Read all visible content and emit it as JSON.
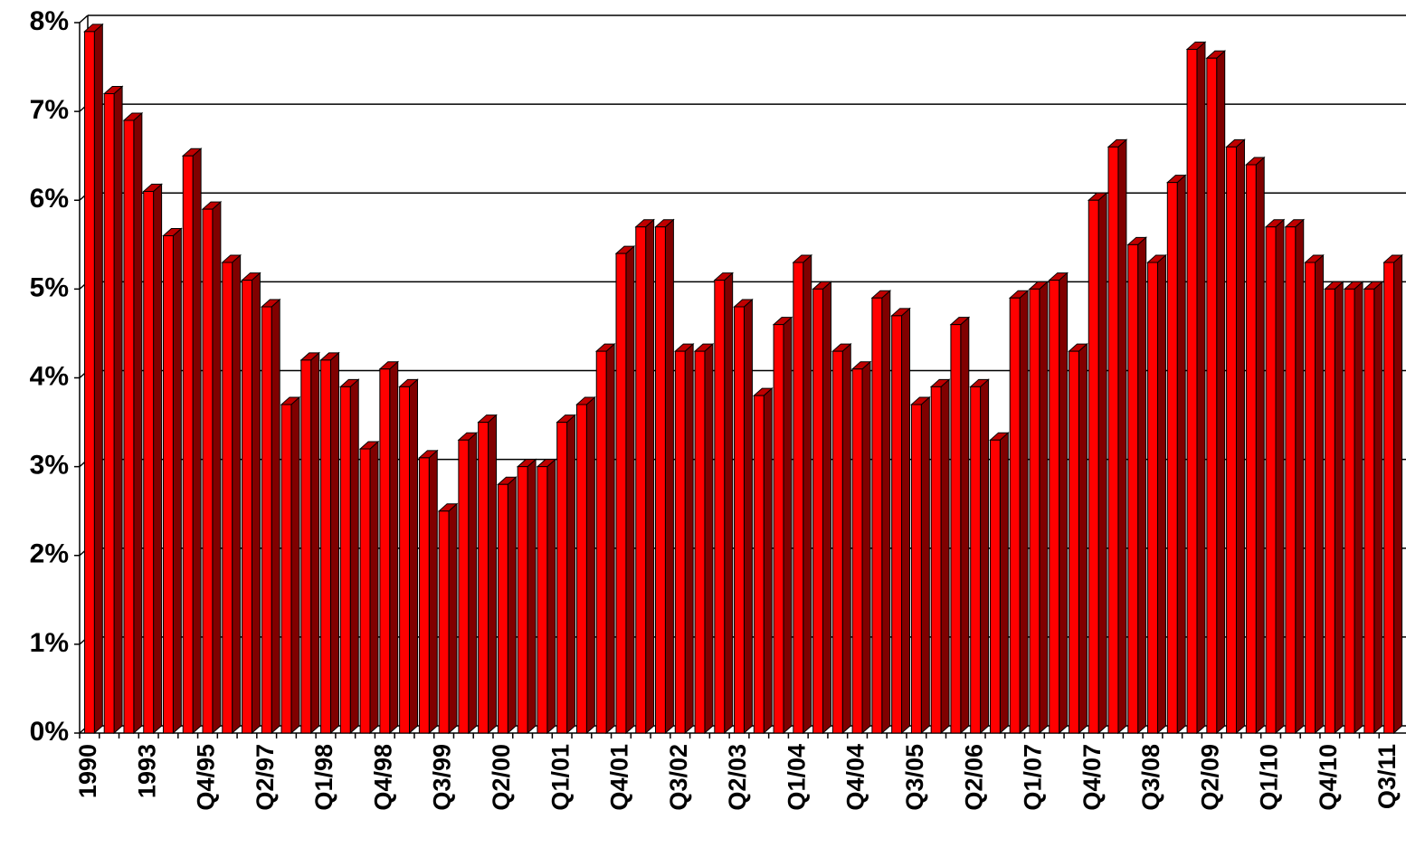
{
  "chart_data": {
    "type": "bar3d",
    "categories": [
      "1990",
      null,
      null,
      "1993",
      null,
      null,
      "Q4/95",
      null,
      null,
      "Q2/97",
      null,
      null,
      "Q1/98",
      null,
      null,
      "Q4/98",
      null,
      null,
      "Q3/99",
      null,
      null,
      "Q2/00",
      null,
      null,
      "Q1/01",
      null,
      null,
      "Q4/01",
      null,
      null,
      "Q3/02",
      null,
      null,
      "Q2/03",
      null,
      null,
      "Q1/04",
      null,
      null,
      "Q4/04",
      null,
      null,
      "Q3/05",
      null,
      null,
      "Q2/06",
      null,
      null,
      "Q1/07",
      null,
      null,
      "Q4/07",
      null,
      null,
      "Q3/08",
      null,
      null,
      "Q2/09",
      null,
      null,
      "Q1/10",
      null,
      null,
      "Q4/10",
      null,
      null,
      "Q3/11"
    ],
    "values": [
      7.9,
      7.2,
      6.9,
      6.1,
      5.6,
      6.5,
      5.9,
      5.3,
      5.1,
      4.8,
      3.7,
      4.2,
      4.2,
      3.9,
      3.2,
      4.1,
      3.9,
      3.1,
      2.5,
      3.3,
      3.5,
      2.8,
      3.0,
      3.0,
      3.5,
      3.7,
      4.3,
      5.4,
      5.7,
      5.7,
      4.3,
      4.3,
      5.1,
      4.8,
      3.8,
      4.6,
      5.3,
      5.0,
      4.3,
      4.1,
      4.9,
      4.7,
      3.7,
      3.9,
      4.6,
      3.9,
      3.3,
      4.9,
      5.0,
      5.1,
      4.3,
      6.0,
      6.6,
      5.5,
      5.3,
      6.2,
      7.7,
      7.6,
      6.6,
      6.4,
      5.7,
      5.7,
      5.3,
      5.0,
      5.0,
      5.0,
      5.3
    ],
    "color": "#ff0000",
    "ylim": [
      0,
      8
    ],
    "yticks": [
      {
        "value": 0,
        "label": "0%"
      },
      {
        "value": 1,
        "label": "1%"
      },
      {
        "value": 2,
        "label": "2%"
      },
      {
        "value": 3,
        "label": "3%"
      },
      {
        "value": 4,
        "label": "4%"
      },
      {
        "value": 5,
        "label": "5%"
      },
      {
        "value": 6,
        "label": "6%"
      },
      {
        "value": 7,
        "label": "7%"
      },
      {
        "value": 8,
        "label": "8%"
      }
    ],
    "grid": true
  }
}
